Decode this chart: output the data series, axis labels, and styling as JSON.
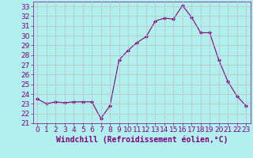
{
  "x": [
    0,
    1,
    2,
    3,
    4,
    5,
    6,
    7,
    8,
    9,
    10,
    11,
    12,
    13,
    14,
    15,
    16,
    17,
    18,
    19,
    20,
    21,
    22,
    23
  ],
  "y": [
    23.5,
    23.0,
    23.2,
    23.1,
    23.2,
    23.2,
    23.2,
    21.5,
    22.8,
    27.5,
    28.5,
    29.3,
    29.9,
    31.5,
    31.8,
    31.7,
    33.1,
    31.9,
    30.3,
    30.3,
    27.5,
    25.3,
    23.8,
    22.8
  ],
  "line_color": "#800080",
  "marker": "D",
  "marker_size": 2,
  "bg_color": "#b2f0f0",
  "grid_color": "#c0c0c0",
  "xlabel": "Windchill (Refroidissement éolien,°C)",
  "xlabel_color": "#800080",
  "tick_color": "#800080",
  "xlim": [
    -0.5,
    23.5
  ],
  "ylim": [
    21,
    33.5
  ],
  "yticks": [
    21,
    22,
    23,
    24,
    25,
    26,
    27,
    28,
    29,
    30,
    31,
    32,
    33
  ],
  "xticks": [
    0,
    1,
    2,
    3,
    4,
    5,
    6,
    7,
    8,
    9,
    10,
    11,
    12,
    13,
    14,
    15,
    16,
    17,
    18,
    19,
    20,
    21,
    22,
    23
  ],
  "font_size": 6.5,
  "xlabel_font_size": 7
}
